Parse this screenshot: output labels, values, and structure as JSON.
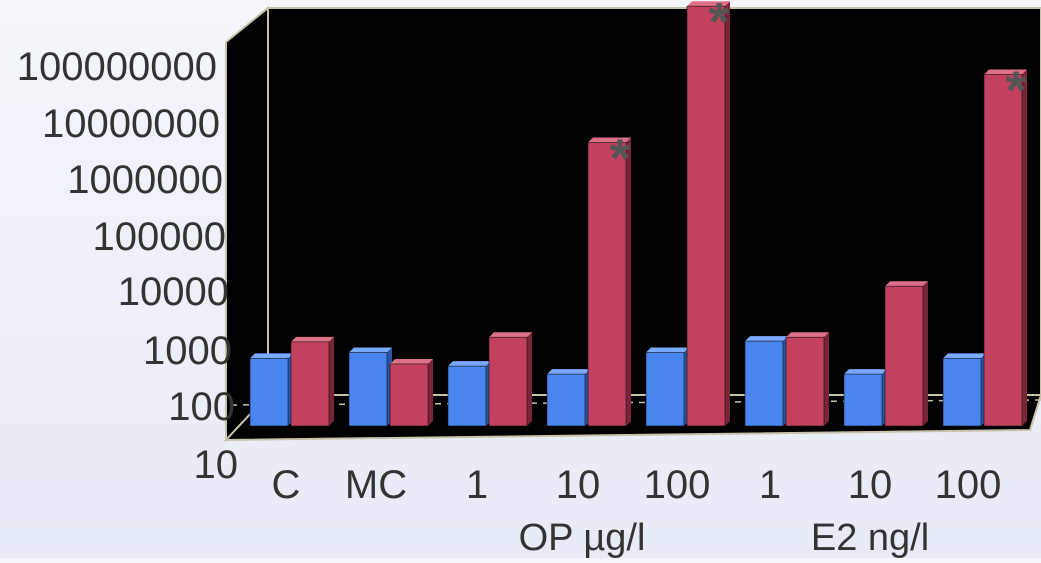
{
  "chart_data": {
    "type": "bar",
    "title": "",
    "xlabel": "",
    "ylabel": "",
    "yscale": "log",
    "ylim": [
      10,
      100000000
    ],
    "grid": false,
    "legend": "none",
    "y_ticks": [
      "10",
      "100",
      "1000",
      "10000",
      "100000",
      "1000000",
      "10000000",
      "100000000"
    ],
    "categories": [
      "C",
      "MC",
      "1",
      "10",
      "100",
      "1",
      "10",
      "100"
    ],
    "group_labels": [
      "OP µg/l",
      "E2 ng/l"
    ],
    "series": [
      {
        "color": "#4a86f0",
        "values": [
          150,
          190,
          110,
          80,
          190,
          300,
          80,
          150
        ]
      },
      {
        "color": "#c4405f",
        "values": [
          290,
          120,
          350,
          850000,
          200000000,
          350,
          2700,
          13000000
        ]
      }
    ],
    "significant": [
      {
        "category_index": 3,
        "mark": "*"
      },
      {
        "category_index": 4,
        "mark": "*"
      },
      {
        "category_index": 7,
        "mark": "*"
      }
    ],
    "colors": {
      "plot_background": "#000000",
      "wall_edge": "#c8c2a8"
    }
  }
}
